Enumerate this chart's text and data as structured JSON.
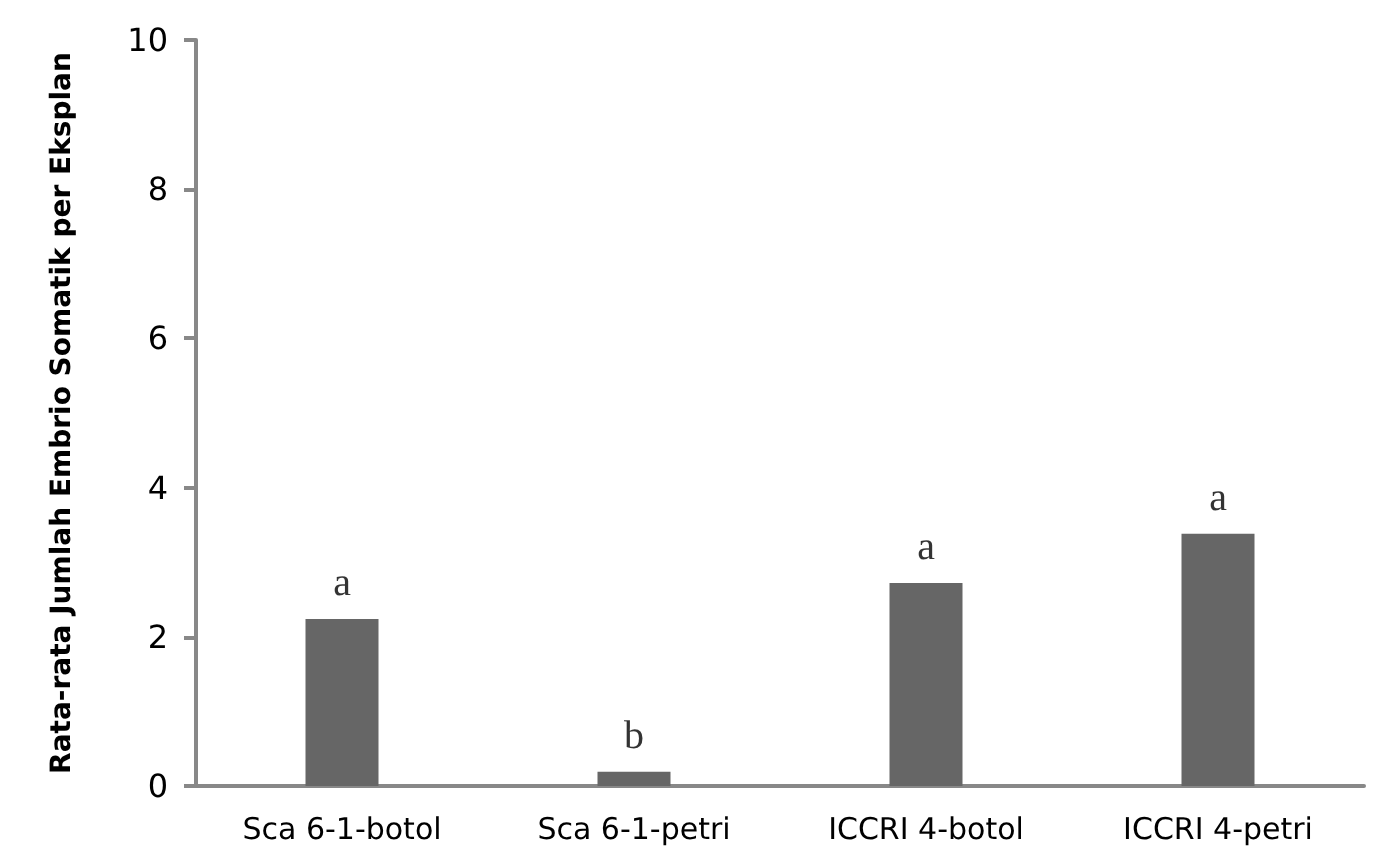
{
  "chart_data": {
    "type": "bar",
    "ylabel": "Rata-rata Jumlah Embrio Somatik per Eksplan",
    "categories": [
      "Sca 6-1-botol",
      "Sca 6-1-petri",
      "ICCRI 4-botol",
      "ICCRI 4-petri"
    ],
    "values": [
      2.24,
      0.19,
      2.72,
      3.38
    ],
    "color": "#666666",
    "ylim": [
      0,
      10
    ],
    "yticks": [
      0,
      2,
      4,
      6,
      8,
      10
    ],
    "grid": false,
    "annotations": [
      {
        "text": "a",
        "x": "Sca 6-1-botol",
        "y": 2.24
      },
      {
        "text": "b",
        "x": "Sca 6-1-petri",
        "y": 0.19
      },
      {
        "text": "a",
        "x": "ICCRI 4-botol",
        "y": 2.72
      },
      {
        "text": "a",
        "x": "ICCRI 4-petri",
        "y": 3.38
      }
    ]
  }
}
